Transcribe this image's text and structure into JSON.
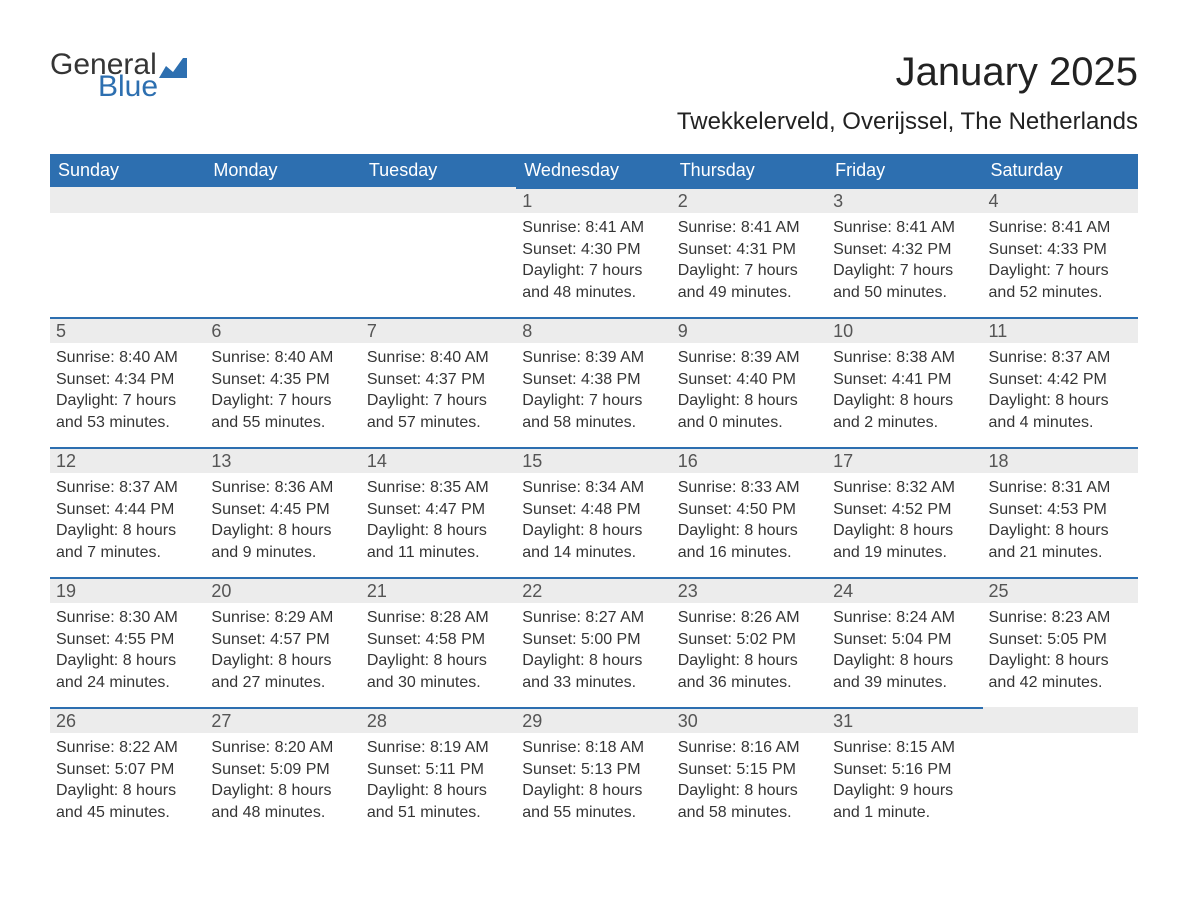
{
  "logo": {
    "text1": "General",
    "text2": "Blue",
    "icon_fill": "#2d6fb0"
  },
  "title": "January 2025",
  "subtitle": "Twekkelerveld, Overijssel, The Netherlands",
  "colors": {
    "header_bg": "#2d6fb0",
    "header_text": "#ffffff",
    "daybar_bg": "#ececec",
    "daybar_border": "#2d6fb0",
    "body_text": "#353535",
    "page_bg": "#ffffff"
  },
  "weekdays": [
    "Sunday",
    "Monday",
    "Tuesday",
    "Wednesday",
    "Thursday",
    "Friday",
    "Saturday"
  ],
  "weeks": [
    [
      {
        "day": ""
      },
      {
        "day": ""
      },
      {
        "day": ""
      },
      {
        "day": "1",
        "sunrise": "Sunrise: 8:41 AM",
        "sunset": "Sunset: 4:30 PM",
        "daylight": "Daylight: 7 hours and 48 minutes."
      },
      {
        "day": "2",
        "sunrise": "Sunrise: 8:41 AM",
        "sunset": "Sunset: 4:31 PM",
        "daylight": "Daylight: 7 hours and 49 minutes."
      },
      {
        "day": "3",
        "sunrise": "Sunrise: 8:41 AM",
        "sunset": "Sunset: 4:32 PM",
        "daylight": "Daylight: 7 hours and 50 minutes."
      },
      {
        "day": "4",
        "sunrise": "Sunrise: 8:41 AM",
        "sunset": "Sunset: 4:33 PM",
        "daylight": "Daylight: 7 hours and 52 minutes."
      }
    ],
    [
      {
        "day": "5",
        "sunrise": "Sunrise: 8:40 AM",
        "sunset": "Sunset: 4:34 PM",
        "daylight": "Daylight: 7 hours and 53 minutes."
      },
      {
        "day": "6",
        "sunrise": "Sunrise: 8:40 AM",
        "sunset": "Sunset: 4:35 PM",
        "daylight": "Daylight: 7 hours and 55 minutes."
      },
      {
        "day": "7",
        "sunrise": "Sunrise: 8:40 AM",
        "sunset": "Sunset: 4:37 PM",
        "daylight": "Daylight: 7 hours and 57 minutes."
      },
      {
        "day": "8",
        "sunrise": "Sunrise: 8:39 AM",
        "sunset": "Sunset: 4:38 PM",
        "daylight": "Daylight: 7 hours and 58 minutes."
      },
      {
        "day": "9",
        "sunrise": "Sunrise: 8:39 AM",
        "sunset": "Sunset: 4:40 PM",
        "daylight": "Daylight: 8 hours and 0 minutes."
      },
      {
        "day": "10",
        "sunrise": "Sunrise: 8:38 AM",
        "sunset": "Sunset: 4:41 PM",
        "daylight": "Daylight: 8 hours and 2 minutes."
      },
      {
        "day": "11",
        "sunrise": "Sunrise: 8:37 AM",
        "sunset": "Sunset: 4:42 PM",
        "daylight": "Daylight: 8 hours and 4 minutes."
      }
    ],
    [
      {
        "day": "12",
        "sunrise": "Sunrise: 8:37 AM",
        "sunset": "Sunset: 4:44 PM",
        "daylight": "Daylight: 8 hours and 7 minutes."
      },
      {
        "day": "13",
        "sunrise": "Sunrise: 8:36 AM",
        "sunset": "Sunset: 4:45 PM",
        "daylight": "Daylight: 8 hours and 9 minutes."
      },
      {
        "day": "14",
        "sunrise": "Sunrise: 8:35 AM",
        "sunset": "Sunset: 4:47 PM",
        "daylight": "Daylight: 8 hours and 11 minutes."
      },
      {
        "day": "15",
        "sunrise": "Sunrise: 8:34 AM",
        "sunset": "Sunset: 4:48 PM",
        "daylight": "Daylight: 8 hours and 14 minutes."
      },
      {
        "day": "16",
        "sunrise": "Sunrise: 8:33 AM",
        "sunset": "Sunset: 4:50 PM",
        "daylight": "Daylight: 8 hours and 16 minutes."
      },
      {
        "day": "17",
        "sunrise": "Sunrise: 8:32 AM",
        "sunset": "Sunset: 4:52 PM",
        "daylight": "Daylight: 8 hours and 19 minutes."
      },
      {
        "day": "18",
        "sunrise": "Sunrise: 8:31 AM",
        "sunset": "Sunset: 4:53 PM",
        "daylight": "Daylight: 8 hours and 21 minutes."
      }
    ],
    [
      {
        "day": "19",
        "sunrise": "Sunrise: 8:30 AM",
        "sunset": "Sunset: 4:55 PM",
        "daylight": "Daylight: 8 hours and 24 minutes."
      },
      {
        "day": "20",
        "sunrise": "Sunrise: 8:29 AM",
        "sunset": "Sunset: 4:57 PM",
        "daylight": "Daylight: 8 hours and 27 minutes."
      },
      {
        "day": "21",
        "sunrise": "Sunrise: 8:28 AM",
        "sunset": "Sunset: 4:58 PM",
        "daylight": "Daylight: 8 hours and 30 minutes."
      },
      {
        "day": "22",
        "sunrise": "Sunrise: 8:27 AM",
        "sunset": "Sunset: 5:00 PM",
        "daylight": "Daylight: 8 hours and 33 minutes."
      },
      {
        "day": "23",
        "sunrise": "Sunrise: 8:26 AM",
        "sunset": "Sunset: 5:02 PM",
        "daylight": "Daylight: 8 hours and 36 minutes."
      },
      {
        "day": "24",
        "sunrise": "Sunrise: 8:24 AM",
        "sunset": "Sunset: 5:04 PM",
        "daylight": "Daylight: 8 hours and 39 minutes."
      },
      {
        "day": "25",
        "sunrise": "Sunrise: 8:23 AM",
        "sunset": "Sunset: 5:05 PM",
        "daylight": "Daylight: 8 hours and 42 minutes."
      }
    ],
    [
      {
        "day": "26",
        "sunrise": "Sunrise: 8:22 AM",
        "sunset": "Sunset: 5:07 PM",
        "daylight": "Daylight: 8 hours and 45 minutes."
      },
      {
        "day": "27",
        "sunrise": "Sunrise: 8:20 AM",
        "sunset": "Sunset: 5:09 PM",
        "daylight": "Daylight: 8 hours and 48 minutes."
      },
      {
        "day": "28",
        "sunrise": "Sunrise: 8:19 AM",
        "sunset": "Sunset: 5:11 PM",
        "daylight": "Daylight: 8 hours and 51 minutes."
      },
      {
        "day": "29",
        "sunrise": "Sunrise: 8:18 AM",
        "sunset": "Sunset: 5:13 PM",
        "daylight": "Daylight: 8 hours and 55 minutes."
      },
      {
        "day": "30",
        "sunrise": "Sunrise: 8:16 AM",
        "sunset": "Sunset: 5:15 PM",
        "daylight": "Daylight: 8 hours and 58 minutes."
      },
      {
        "day": "31",
        "sunrise": "Sunrise: 8:15 AM",
        "sunset": "Sunset: 5:16 PM",
        "daylight": "Daylight: 9 hours and 1 minute."
      },
      {
        "day": ""
      }
    ]
  ]
}
